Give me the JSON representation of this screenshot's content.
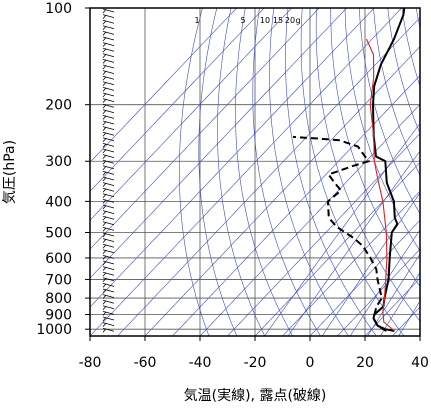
{
  "chart_data": {
    "type": "line",
    "title": "",
    "xlabel": "気温(実線), 露点(破線)",
    "ylabel": "気圧(hPa)",
    "xlim": [
      -80,
      40
    ],
    "ylim": [
      1050,
      100
    ],
    "y_scale": "log",
    "x_ticks": [
      -80,
      -60,
      -40,
      -20,
      0,
      20,
      40
    ],
    "y_ticks": [
      100,
      200,
      300,
      400,
      500,
      600,
      700,
      800,
      900,
      1000
    ],
    "mixing_ratio_labels": [
      "1",
      "5",
      "10",
      "15",
      "20",
      "g"
    ],
    "grid": true,
    "series": [
      {
        "role": "temperature",
        "color": "#000000",
        "style": "solid",
        "points": [
          [
            29,
            1013
          ],
          [
            25,
            1000
          ],
          [
            21,
            975
          ],
          [
            17,
            925
          ],
          [
            16,
            900
          ],
          [
            16.5,
            850
          ],
          [
            14,
            800
          ],
          [
            9,
            700
          ],
          [
            2,
            600
          ],
          [
            -6,
            500
          ],
          [
            -7,
            470
          ],
          [
            -10,
            450
          ],
          [
            -16,
            400
          ],
          [
            -25,
            350
          ],
          [
            -33,
            300
          ],
          [
            -38,
            290
          ],
          [
            -46,
            250
          ],
          [
            -57,
            200
          ],
          [
            -63,
            175
          ],
          [
            -68,
            150
          ],
          [
            -72,
            125
          ],
          [
            -77,
            105
          ],
          [
            -79,
            100
          ]
        ]
      },
      {
        "role": "dewpoint",
        "color": "#000000",
        "style": "dashed",
        "points": [
          [
            26,
            1013
          ],
          [
            21,
            975
          ],
          [
            17,
            925
          ],
          [
            14,
            850
          ],
          [
            13,
            800
          ],
          [
            5,
            700
          ],
          [
            1,
            650
          ],
          [
            -5,
            600
          ],
          [
            -12,
            550
          ],
          [
            -18,
            520
          ],
          [
            -28,
            480
          ],
          [
            -34,
            450
          ],
          [
            -40,
            400
          ],
          [
            -39,
            370
          ],
          [
            -44,
            350
          ],
          [
            -49,
            330
          ],
          [
            -43,
            310
          ],
          [
            -39,
            300
          ],
          [
            -42,
            290
          ],
          [
            -48,
            270
          ],
          [
            -57,
            258
          ],
          [
            -65,
            255
          ],
          [
            -75,
            252
          ]
        ]
      },
      {
        "role": "parcel",
        "color": "#e02020",
        "style": "solid",
        "points": [
          [
            29,
            1013
          ],
          [
            22,
            950
          ],
          [
            18,
            880
          ],
          [
            14,
            800
          ],
          [
            8,
            700
          ],
          [
            1,
            600
          ],
          [
            -8,
            500
          ],
          [
            -20,
            400
          ],
          [
            -28,
            350
          ],
          [
            -37,
            300
          ],
          [
            -46,
            250
          ],
          [
            -58,
            200
          ],
          [
            -66,
            165
          ],
          [
            -74,
            140
          ],
          [
            -82,
            125
          ]
        ]
      }
    ]
  }
}
